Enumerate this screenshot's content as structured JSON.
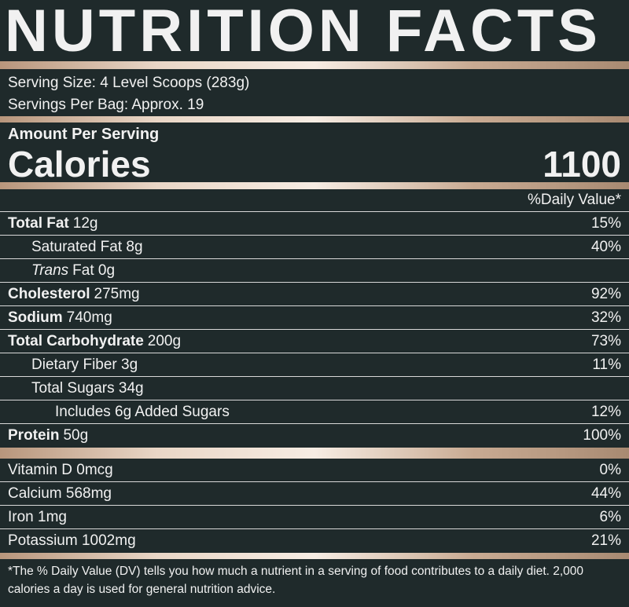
{
  "title": "NUTRITION FACTS",
  "serving": {
    "size": "Serving Size: 4 Level Scoops (283g)",
    "per_bag": "Servings Per Bag: Approx. 19"
  },
  "calories": {
    "heading": "Amount Per Serving",
    "label": "Calories",
    "value": 1100
  },
  "daily_value_header": "%Daily Value*",
  "nutrients": [
    {
      "name": "Total Fat",
      "amount": "12g",
      "dv": "15%"
    },
    {
      "amount": "Saturated Fat 8g",
      "dv": "40%"
    },
    {
      "italic": "Trans",
      "amount": "Fat 0g"
    },
    {
      "name": "Cholesterol",
      "amount": "275mg",
      "dv": "92%"
    },
    {
      "name": "Sodium",
      "amount": "740mg",
      "dv": "32%"
    },
    {
      "name": "Total Carbohydrate",
      "amount": "200g",
      "dv": "73%"
    },
    {
      "amount": "Dietary Fiber 3g",
      "dv": "11%"
    },
    {
      "amount": "Total Sugars 34g"
    },
    {
      "amount": "Includes 6g Added Sugars",
      "dv": "12%"
    },
    {
      "name": "Protein",
      "amount": "50g",
      "dv": "100%"
    }
  ],
  "vitamins": [
    {
      "amount": "Vitamin D 0mcg",
      "dv": "0%"
    },
    {
      "amount": "Calcium 568mg",
      "dv": "44%"
    },
    {
      "amount": "Iron 1mg",
      "dv": "6%"
    },
    {
      "amount": "Potassium 1002mg",
      "dv": "21%"
    }
  ],
  "footnote": "*The % Daily Value (DV) tells you how much a nutrient in a serving of food contributes to a daily diet. 2,000 calories a day is used for general nutrition advice."
}
